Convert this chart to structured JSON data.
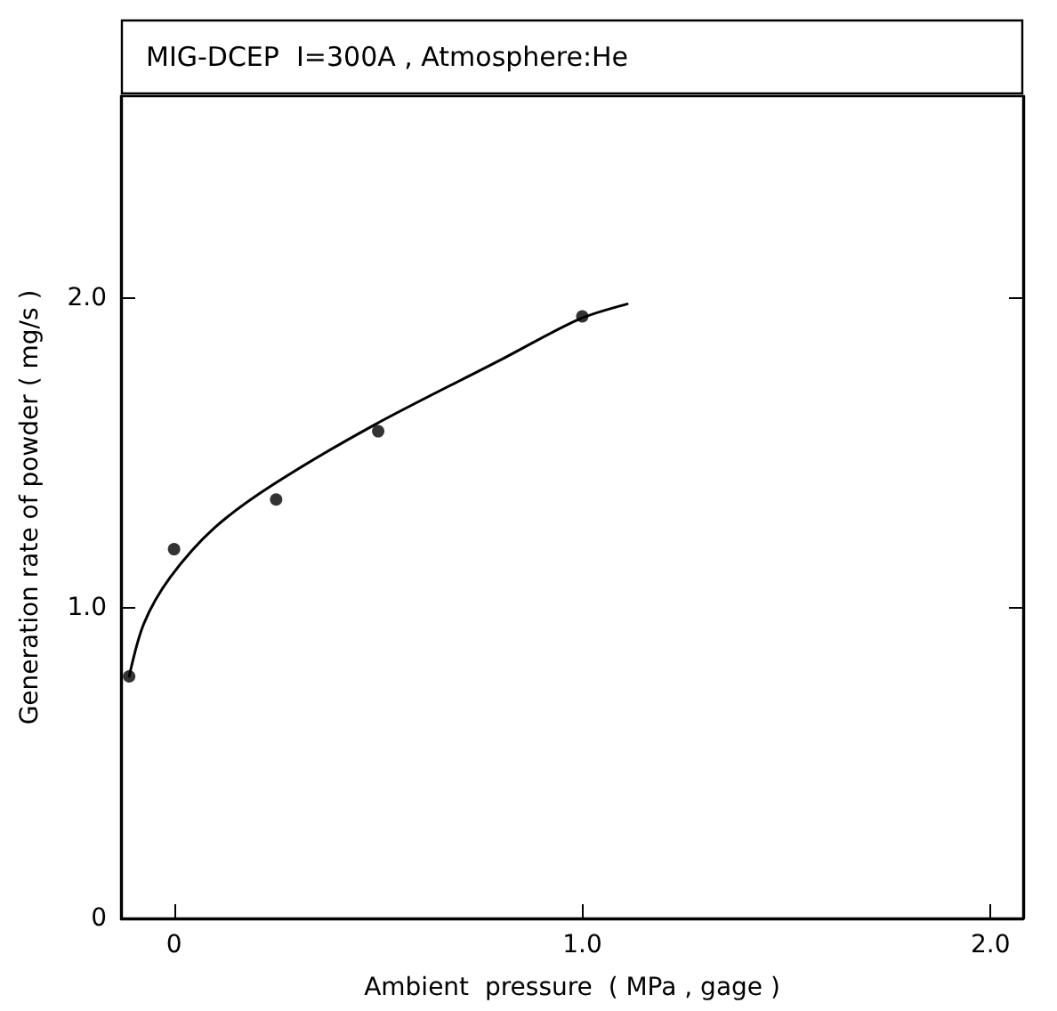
{
  "chart_data": {
    "type": "scatter",
    "title": "MIG-DCEP  I=300A , Atmosphere:He",
    "xlabel": "Ambient  pressure  ( MPa , gage )",
    "ylabel": "Generation rate of powder ( mg/s )",
    "series": [
      {
        "color": "#000000",
        "marker": "circle",
        "x": [
          -0.11,
          0,
          0.25,
          0.5,
          1.0
        ],
        "values": [
          0.78,
          1.19,
          1.35,
          1.57,
          1.94
        ]
      },
      {
        "type": "line",
        "color": "#000000",
        "marker": "none",
        "x": [
          -0.11,
          -0.074,
          -0.009,
          0.1,
          0.245,
          0.49,
          0.8,
          0.99,
          1.11
        ],
        "values": [
          0.78,
          0.95,
          1.1,
          1.26,
          1.4,
          1.59,
          1.8,
          1.93,
          1.98
        ]
      }
    ],
    "xlim": [
      -0.13,
      2.08
    ],
    "xticks": [
      0,
      {
        "value": 1,
        "label": "1.0"
      },
      {
        "value": 2,
        "label": "2.0"
      }
    ],
    "ylim": [
      0,
      2.65
    ],
    "yticks": [
      0,
      {
        "value": 1,
        "label": "1.0"
      },
      {
        "value": 2,
        "label": "2.0"
      }
    ],
    "grid": false
  }
}
